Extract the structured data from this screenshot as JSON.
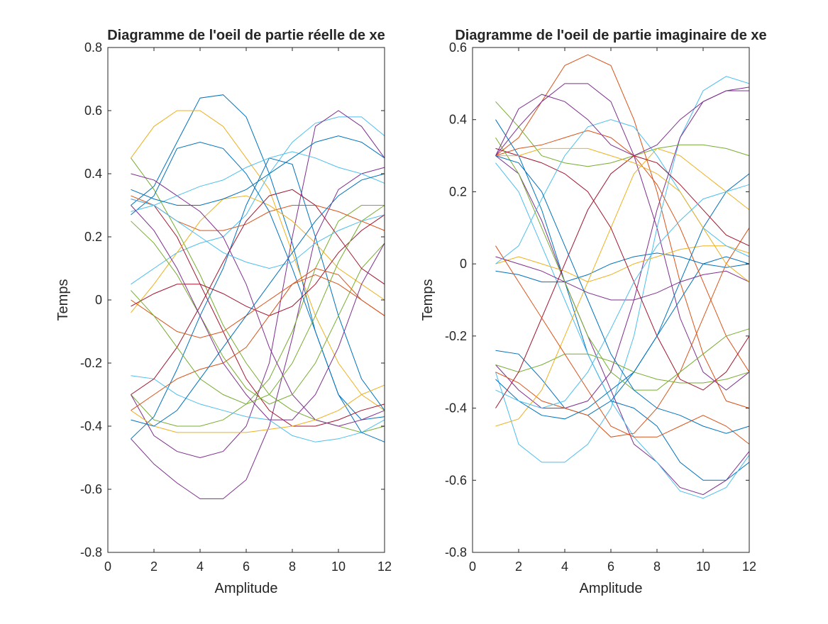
{
  "chart_data": [
    {
      "type": "line",
      "title": "Diagramme de l'oeil de partie réelle de xe",
      "xlabel": "Amplitude",
      "ylabel": "Temps",
      "xlim": [
        0,
        12
      ],
      "ylim": [
        -0.8,
        0.8
      ],
      "xticks": [
        "0",
        "2",
        "4",
        "6",
        "8",
        "10",
        "12"
      ],
      "yticks": [
        "-0.8",
        "-0.6",
        "-0.4",
        "-0.2",
        "0",
        "0.2",
        "0.4",
        "0.6",
        "0.8"
      ],
      "x": [
        1,
        2,
        3,
        4,
        5,
        6,
        7,
        8,
        9,
        10,
        11,
        12
      ],
      "series": [
        {
          "color": "#0072BD",
          "values": [
            0.3,
            0.36,
            0.5,
            0.64,
            0.65,
            0.58,
            0.4,
            0.18,
            -0.1,
            -0.3,
            -0.38,
            -0.37
          ]
        },
        {
          "color": "#EDB120",
          "values": [
            0.45,
            0.55,
            0.6,
            0.6,
            0.55,
            0.45,
            0.35,
            0.15,
            -0.05,
            -0.2,
            -0.3,
            -0.35
          ]
        },
        {
          "color": "#7E2F8E",
          "values": [
            -0.44,
            -0.52,
            -0.58,
            -0.63,
            -0.63,
            -0.57,
            -0.4,
            -0.12,
            0.2,
            0.35,
            0.4,
            0.42
          ]
        },
        {
          "color": "#77AC30",
          "values": [
            -0.3,
            -0.38,
            -0.4,
            -0.4,
            -0.38,
            -0.33,
            -0.25,
            -0.1,
            0.1,
            0.25,
            0.3,
            0.3
          ]
        },
        {
          "color": "#4DBEEE",
          "values": [
            0.05,
            0.1,
            0.15,
            0.18,
            0.2,
            0.27,
            0.4,
            0.5,
            0.56,
            0.58,
            0.58,
            0.52
          ]
        },
        {
          "color": "#A2142F",
          "values": [
            0.32,
            0.3,
            0.2,
            0.05,
            -0.1,
            -0.25,
            -0.35,
            -0.4,
            -0.4,
            -0.38,
            -0.35,
            -0.33
          ]
        },
        {
          "color": "#0072BD",
          "values": [
            -0.44,
            -0.37,
            -0.22,
            -0.05,
            0.1,
            0.3,
            0.45,
            0.43,
            0.2,
            -0.05,
            -0.25,
            -0.35
          ]
        },
        {
          "color": "#7E2F8E",
          "values": [
            -0.3,
            -0.43,
            -0.48,
            -0.5,
            -0.48,
            -0.4,
            -0.2,
            0.2,
            0.55,
            0.6,
            0.55,
            0.45
          ]
        },
        {
          "color": "#D95319",
          "values": [
            0.33,
            0.3,
            0.25,
            0.22,
            0.22,
            0.24,
            0.28,
            0.3,
            0.3,
            0.28,
            0.25,
            0.22
          ]
        },
        {
          "color": "#77AC30",
          "values": [
            0.45,
            0.35,
            0.22,
            0.08,
            -0.08,
            -0.2,
            -0.3,
            -0.35,
            -0.38,
            -0.4,
            -0.42,
            -0.4
          ]
        },
        {
          "color": "#4DBEEE",
          "values": [
            -0.24,
            -0.25,
            -0.3,
            -0.33,
            -0.35,
            -0.37,
            -0.38,
            -0.43,
            -0.45,
            -0.44,
            -0.42,
            -0.38
          ]
        },
        {
          "color": "#EDB120",
          "values": [
            -0.04,
            0.05,
            0.15,
            0.25,
            0.32,
            0.33,
            0.3,
            0.25,
            0.18,
            0.1,
            0.05,
            0.0
          ]
        },
        {
          "color": "#A2142F",
          "values": [
            -0.02,
            0.02,
            0.05,
            0.05,
            0.02,
            -0.02,
            -0.05,
            -0.02,
            0.05,
            0.15,
            0.22,
            0.27
          ]
        },
        {
          "color": "#0072BD",
          "values": [
            0.27,
            0.33,
            0.48,
            0.5,
            0.48,
            0.4,
            0.28,
            0.1,
            -0.1,
            -0.3,
            -0.42,
            -0.45
          ]
        },
        {
          "color": "#D95319",
          "values": [
            -0.35,
            -0.3,
            -0.25,
            -0.22,
            -0.2,
            -0.15,
            -0.05,
            0.05,
            0.1,
            0.08,
            0.0,
            -0.05
          ]
        },
        {
          "color": "#7E2F8E",
          "values": [
            0.4,
            0.38,
            0.33,
            0.28,
            0.2,
            0.05,
            -0.15,
            -0.3,
            -0.38,
            -0.4,
            -0.38,
            -0.35
          ]
        },
        {
          "color": "#77AC30",
          "values": [
            0.25,
            0.18,
            0.08,
            -0.05,
            -0.18,
            -0.28,
            -0.33,
            -0.3,
            -0.2,
            -0.05,
            0.1,
            0.18
          ]
        },
        {
          "color": "#4DBEEE",
          "values": [
            0.28,
            0.3,
            0.33,
            0.36,
            0.38,
            0.42,
            0.45,
            0.47,
            0.45,
            0.42,
            0.4,
            0.37
          ]
        },
        {
          "color": "#EDB120",
          "values": [
            -0.35,
            -0.4,
            -0.42,
            -0.42,
            -0.42,
            -0.42,
            -0.41,
            -0.4,
            -0.38,
            -0.35,
            -0.3,
            -0.27
          ]
        },
        {
          "color": "#0072BD",
          "values": [
            0.35,
            0.32,
            0.3,
            0.3,
            0.32,
            0.35,
            0.4,
            0.45,
            0.5,
            0.52,
            0.5,
            0.45
          ]
        },
        {
          "color": "#A2142F",
          "values": [
            -0.3,
            -0.25,
            -0.15,
            -0.02,
            0.12,
            0.25,
            0.33,
            0.35,
            0.3,
            0.2,
            0.1,
            0.05
          ]
        },
        {
          "color": "#D95319",
          "values": [
            0.0,
            -0.05,
            -0.1,
            -0.12,
            -0.1,
            -0.05,
            0.0,
            0.05,
            0.08,
            0.05,
            0.0,
            -0.05
          ]
        },
        {
          "color": "#7E2F8E",
          "values": [
            0.3,
            0.22,
            0.1,
            -0.05,
            -0.2,
            -0.3,
            -0.38,
            -0.38,
            -0.3,
            -0.15,
            0.05,
            0.18
          ]
        },
        {
          "color": "#77AC30",
          "values": [
            0.03,
            -0.05,
            -0.15,
            -0.25,
            -0.3,
            -0.33,
            -0.3,
            -0.2,
            -0.05,
            0.12,
            0.25,
            0.3
          ]
        },
        {
          "color": "#4DBEEE",
          "values": [
            0.32,
            0.3,
            0.25,
            0.2,
            0.15,
            0.12,
            0.1,
            0.12,
            0.18,
            0.22,
            0.25,
            0.27
          ]
        },
        {
          "color": "#0072BD",
          "values": [
            -0.38,
            -0.4,
            -0.35,
            -0.25,
            -0.15,
            -0.05,
            0.05,
            0.15,
            0.25,
            0.33,
            0.38,
            0.4
          ]
        }
      ]
    },
    {
      "type": "line",
      "title": "Diagramme de l'oeil de partie imaginaire de xe",
      "xlabel": "Amplitude",
      "ylabel": "Temps",
      "xlim": [
        0,
        12
      ],
      "ylim": [
        -0.8,
        0.6
      ],
      "xticks": [
        "0",
        "2",
        "4",
        "6",
        "8",
        "10",
        "12"
      ],
      "yticks": [
        "-0.8",
        "-0.6",
        "-0.4",
        "-0.2",
        "0",
        "0.2",
        "0.4",
        "0.6"
      ],
      "x": [
        1,
        2,
        3,
        4,
        5,
        6,
        7,
        8,
        9,
        10,
        11,
        12
      ],
      "series": [
        {
          "color": "#D95319",
          "values": [
            0.3,
            0.35,
            0.45,
            0.55,
            0.58,
            0.55,
            0.4,
            0.2,
            -0.05,
            -0.25,
            -0.38,
            -0.4
          ]
        },
        {
          "color": "#7E2F8E",
          "values": [
            0.3,
            0.38,
            0.45,
            0.5,
            0.5,
            0.45,
            0.3,
            0.1,
            -0.15,
            -0.3,
            -0.35,
            -0.3
          ]
        },
        {
          "color": "#4DBEEE",
          "values": [
            -0.3,
            -0.5,
            -0.55,
            -0.55,
            -0.5,
            -0.4,
            -0.2,
            0.1,
            0.35,
            0.48,
            0.52,
            0.5
          ]
        },
        {
          "color": "#7E2F8E",
          "values": [
            -0.28,
            -0.35,
            -0.4,
            -0.4,
            -0.38,
            -0.3,
            -0.1,
            0.15,
            0.35,
            0.45,
            0.48,
            0.48
          ]
        },
        {
          "color": "#0072BD",
          "values": [
            0.4,
            0.3,
            0.15,
            -0.05,
            -0.25,
            -0.38,
            -0.4,
            -0.45,
            -0.55,
            -0.6,
            -0.6,
            -0.55
          ]
        },
        {
          "color": "#7E2F8E",
          "values": [
            0.3,
            0.25,
            0.12,
            -0.05,
            -0.2,
            -0.35,
            -0.5,
            -0.55,
            -0.62,
            -0.64,
            -0.6,
            -0.52
          ]
        },
        {
          "color": "#4DBEEE",
          "values": [
            0.28,
            0.2,
            0.05,
            -0.1,
            -0.25,
            -0.38,
            -0.48,
            -0.55,
            -0.63,
            -0.65,
            -0.62,
            -0.53
          ]
        },
        {
          "color": "#0072BD",
          "values": [
            -0.24,
            -0.25,
            -0.32,
            -0.4,
            -0.42,
            -0.38,
            -0.3,
            -0.2,
            -0.1,
            0.0,
            0.02,
            0.0
          ]
        },
        {
          "color": "#77AC30",
          "values": [
            0.45,
            0.38,
            0.3,
            0.28,
            0.27,
            0.28,
            0.3,
            0.32,
            0.33,
            0.33,
            0.32,
            0.3
          ]
        },
        {
          "color": "#D95319",
          "values": [
            0.3,
            0.32,
            0.33,
            0.35,
            0.37,
            0.35,
            0.3,
            0.22,
            0.1,
            -0.05,
            -0.2,
            -0.3
          ]
        },
        {
          "color": "#0072BD",
          "values": [
            -0.02,
            -0.03,
            -0.05,
            -0.05,
            -0.03,
            0.0,
            0.02,
            0.03,
            0.02,
            0.0,
            -0.01,
            0.0
          ]
        },
        {
          "color": "#EDB120",
          "values": [
            0.0,
            0.02,
            0.0,
            -0.02,
            -0.05,
            -0.03,
            0.0,
            0.02,
            0.04,
            0.05,
            0.05,
            0.03
          ]
        },
        {
          "color": "#7E2F8E",
          "values": [
            0.02,
            0.0,
            -0.02,
            -0.05,
            -0.08,
            -0.1,
            -0.1,
            -0.08,
            -0.05,
            -0.03,
            -0.02,
            -0.05
          ]
        },
        {
          "color": "#D95319",
          "values": [
            -0.3,
            -0.33,
            -0.38,
            -0.4,
            -0.42,
            -0.48,
            -0.47,
            -0.4,
            -0.3,
            -0.15,
            0.0,
            0.1
          ]
        },
        {
          "color": "#77AC30",
          "values": [
            -0.28,
            -0.3,
            -0.28,
            -0.25,
            -0.25,
            -0.27,
            -0.3,
            -0.32,
            -0.33,
            -0.33,
            -0.32,
            -0.3
          ]
        },
        {
          "color": "#EDB120",
          "values": [
            -0.45,
            -0.43,
            -0.35,
            -0.2,
            -0.05,
            0.1,
            0.25,
            0.32,
            0.3,
            0.25,
            0.2,
            0.15
          ]
        },
        {
          "color": "#A2142F",
          "values": [
            0.32,
            0.3,
            0.28,
            0.25,
            0.2,
            0.1,
            -0.05,
            -0.2,
            -0.32,
            -0.35,
            -0.3,
            -0.2
          ]
        },
        {
          "color": "#0072BD",
          "values": [
            -0.32,
            -0.38,
            -0.42,
            -0.43,
            -0.4,
            -0.35,
            -0.3,
            -0.2,
            -0.05,
            0.1,
            0.2,
            0.25
          ]
        },
        {
          "color": "#4DBEEE",
          "values": [
            0.0,
            0.05,
            0.18,
            0.3,
            0.38,
            0.4,
            0.38,
            0.3,
            0.2,
            0.1,
            0.05,
            0.02
          ]
        },
        {
          "color": "#77AC30",
          "values": [
            0.35,
            0.25,
            0.1,
            -0.05,
            -0.2,
            -0.3,
            -0.35,
            -0.35,
            -0.3,
            -0.25,
            -0.2,
            -0.18
          ]
        },
        {
          "color": "#A2142F",
          "values": [
            -0.4,
            -0.3,
            -0.15,
            0.0,
            0.15,
            0.25,
            0.3,
            0.28,
            0.22,
            0.15,
            0.08,
            0.05
          ]
        },
        {
          "color": "#EDB120",
          "values": [
            0.3,
            0.3,
            0.32,
            0.32,
            0.32,
            0.3,
            0.28,
            0.25,
            0.2,
            0.1,
            0.0,
            -0.05
          ]
        },
        {
          "color": "#D95319",
          "values": [
            0.05,
            -0.05,
            -0.15,
            -0.25,
            -0.35,
            -0.45,
            -0.48,
            -0.48,
            -0.45,
            -0.42,
            -0.45,
            -0.5
          ]
        },
        {
          "color": "#4DBEEE",
          "values": [
            -0.35,
            -0.38,
            -0.4,
            -0.38,
            -0.3,
            -0.18,
            -0.05,
            0.05,
            0.12,
            0.18,
            0.2,
            0.22
          ]
        },
        {
          "color": "#7E2F8E",
          "values": [
            0.3,
            0.43,
            0.47,
            0.45,
            0.4,
            0.33,
            0.3,
            0.33,
            0.4,
            0.45,
            0.48,
            0.49
          ]
        },
        {
          "color": "#0072BD",
          "values": [
            0.3,
            0.28,
            0.2,
            0.05,
            -0.1,
            -0.25,
            -0.35,
            -0.4,
            -0.42,
            -0.45,
            -0.47,
            -0.45
          ]
        }
      ]
    }
  ]
}
